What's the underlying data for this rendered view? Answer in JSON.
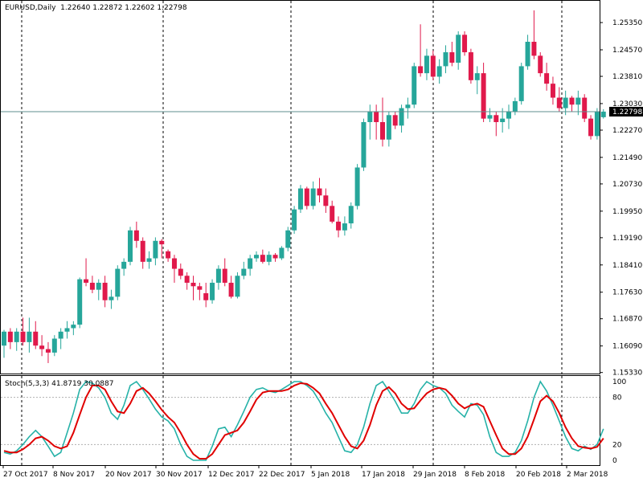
{
  "window": {
    "symbol": "EURUSD,Daily",
    "ohlc": "1.22640 1.22872 1.22602 1.22798"
  },
  "colors": {
    "bull": "#26a69a",
    "bear": "#e0194b",
    "stoch_main": "#26b2a8",
    "stoch_signal": "#e00000",
    "current_price_line": "#5f8f8f",
    "level_line": "#b0b0b0",
    "frame": "#000000",
    "price_label_bg": "#000000",
    "price_label_fg": "#ffffff"
  },
  "chart_data": [
    {
      "type": "candlestick",
      "title": "EURUSD,Daily",
      "ylim": [
        1.153,
        1.2595
      ],
      "y_ticks": [
        "1.25350",
        "1.24570",
        "1.23810",
        "1.23030",
        "1.22270",
        "1.21490",
        "1.20730",
        "1.19950",
        "1.19190",
        "1.18410",
        "1.17630",
        "1.16870",
        "1.16090",
        "1.15330"
      ],
      "current_price": "1.22798",
      "x_labels": [
        "27 Oct 2017",
        "8 Nov 2017",
        "20 Nov 2017",
        "30 Nov 2017",
        "12 Dec 2017",
        "22 Dec 2017",
        "5 Jan 2018",
        "17 Jan 2018",
        "29 Jan 2018",
        "8 Feb 2018",
        "20 Feb 2018",
        "2 Mar 2018"
      ],
      "period_separators": [
        "1 Nov 2017",
        "1 Dec 2017",
        "1 Jan 2018",
        "1 Feb 2018",
        "1 Mar 2018"
      ],
      "candles": [
        {
          "o": 1.161,
          "h": 1.1655,
          "l": 1.1575,
          "c": 1.165
        },
        {
          "o": 1.165,
          "h": 1.166,
          "l": 1.16,
          "c": 1.162
        },
        {
          "o": 1.162,
          "h": 1.166,
          "l": 1.1595,
          "c": 1.165
        },
        {
          "o": 1.165,
          "h": 1.169,
          "l": 1.161,
          "c": 1.162
        },
        {
          "o": 1.162,
          "h": 1.169,
          "l": 1.159,
          "c": 1.165
        },
        {
          "o": 1.165,
          "h": 1.168,
          "l": 1.16,
          "c": 1.161
        },
        {
          "o": 1.161,
          "h": 1.164,
          "l": 1.158,
          "c": 1.16
        },
        {
          "o": 1.16,
          "h": 1.162,
          "l": 1.156,
          "c": 1.159
        },
        {
          "o": 1.159,
          "h": 1.164,
          "l": 1.158,
          "c": 1.163
        },
        {
          "o": 1.163,
          "h": 1.166,
          "l": 1.16,
          "c": 1.165
        },
        {
          "o": 1.165,
          "h": 1.168,
          "l": 1.163,
          "c": 1.166
        },
        {
          "o": 1.166,
          "h": 1.168,
          "l": 1.164,
          "c": 1.167
        },
        {
          "o": 1.167,
          "h": 1.1805,
          "l": 1.166,
          "c": 1.18
        },
        {
          "o": 1.18,
          "h": 1.186,
          "l": 1.178,
          "c": 1.179
        },
        {
          "o": 1.179,
          "h": 1.181,
          "l": 1.176,
          "c": 1.177
        },
        {
          "o": 1.177,
          "h": 1.18,
          "l": 1.174,
          "c": 1.179
        },
        {
          "o": 1.179,
          "h": 1.181,
          "l": 1.172,
          "c": 1.174
        },
        {
          "o": 1.174,
          "h": 1.177,
          "l": 1.1715,
          "c": 1.175
        },
        {
          "o": 1.175,
          "h": 1.184,
          "l": 1.174,
          "c": 1.183
        },
        {
          "o": 1.183,
          "h": 1.186,
          "l": 1.181,
          "c": 1.185
        },
        {
          "o": 1.185,
          "h": 1.195,
          "l": 1.184,
          "c": 1.194
        },
        {
          "o": 1.194,
          "h": 1.1965,
          "l": 1.189,
          "c": 1.191
        },
        {
          "o": 1.191,
          "h": 1.192,
          "l": 1.183,
          "c": 1.185
        },
        {
          "o": 1.185,
          "h": 1.188,
          "l": 1.183,
          "c": 1.186
        },
        {
          "o": 1.186,
          "h": 1.192,
          "l": 1.184,
          "c": 1.191
        },
        {
          "o": 1.191,
          "h": 1.1915,
          "l": 1.186,
          "c": 1.19
        },
        {
          "o": 1.188,
          "h": 1.1885,
          "l": 1.185,
          "c": 1.186
        },
        {
          "o": 1.186,
          "h": 1.187,
          "l": 1.179,
          "c": 1.183
        },
        {
          "o": 1.183,
          "h": 1.1845,
          "l": 1.18,
          "c": 1.181
        },
        {
          "o": 1.181,
          "h": 1.182,
          "l": 1.177,
          "c": 1.179
        },
        {
          "o": 1.179,
          "h": 1.181,
          "l": 1.174,
          "c": 1.178
        },
        {
          "o": 1.178,
          "h": 1.179,
          "l": 1.174,
          "c": 1.177
        },
        {
          "o": 1.176,
          "h": 1.179,
          "l": 1.172,
          "c": 1.174
        },
        {
          "o": 1.174,
          "h": 1.18,
          "l": 1.173,
          "c": 1.179
        },
        {
          "o": 1.179,
          "h": 1.184,
          "l": 1.177,
          "c": 1.183
        },
        {
          "o": 1.183,
          "h": 1.186,
          "l": 1.178,
          "c": 1.179
        },
        {
          "o": 1.179,
          "h": 1.181,
          "l": 1.1745,
          "c": 1.175
        },
        {
          "o": 1.175,
          "h": 1.182,
          "l": 1.1745,
          "c": 1.181
        },
        {
          "o": 1.181,
          "h": 1.185,
          "l": 1.18,
          "c": 1.183
        },
        {
          "o": 1.183,
          "h": 1.187,
          "l": 1.181,
          "c": 1.186
        },
        {
          "o": 1.186,
          "h": 1.188,
          "l": 1.185,
          "c": 1.187
        },
        {
          "o": 1.187,
          "h": 1.1885,
          "l": 1.1845,
          "c": 1.185
        },
        {
          "o": 1.185,
          "h": 1.188,
          "l": 1.184,
          "c": 1.187
        },
        {
          "o": 1.187,
          "h": 1.1875,
          "l": 1.185,
          "c": 1.186
        },
        {
          "o": 1.186,
          "h": 1.1895,
          "l": 1.1855,
          "c": 1.189
        },
        {
          "o": 1.189,
          "h": 1.195,
          "l": 1.188,
          "c": 1.194
        },
        {
          "o": 1.194,
          "h": 1.201,
          "l": 1.193,
          "c": 1.2
        },
        {
          "o": 1.2,
          "h": 1.207,
          "l": 1.199,
          "c": 1.206
        },
        {
          "o": 1.206,
          "h": 1.2065,
          "l": 1.2,
          "c": 1.201
        },
        {
          "o": 1.201,
          "h": 1.208,
          "l": 1.2,
          "c": 1.206
        },
        {
          "o": 1.206,
          "h": 1.209,
          "l": 1.202,
          "c": 1.204
        },
        {
          "o": 1.204,
          "h": 1.206,
          "l": 1.199,
          "c": 1.201
        },
        {
          "o": 1.201,
          "h": 1.2025,
          "l": 1.196,
          "c": 1.1965
        },
        {
          "o": 1.1965,
          "h": 1.198,
          "l": 1.192,
          "c": 1.194
        },
        {
          "o": 1.194,
          "h": 1.198,
          "l": 1.1925,
          "c": 1.196
        },
        {
          "o": 1.196,
          "h": 1.202,
          "l": 1.1945,
          "c": 1.201
        },
        {
          "o": 1.201,
          "h": 1.213,
          "l": 1.2,
          "c": 1.212
        },
        {
          "o": 1.212,
          "h": 1.226,
          "l": 1.211,
          "c": 1.225
        },
        {
          "o": 1.225,
          "h": 1.23,
          "l": 1.22,
          "c": 1.228
        },
        {
          "o": 1.228,
          "h": 1.23,
          "l": 1.22,
          "c": 1.225
        },
        {
          "o": 1.225,
          "h": 1.232,
          "l": 1.218,
          "c": 1.22
        },
        {
          "o": 1.22,
          "h": 1.228,
          "l": 1.218,
          "c": 1.227
        },
        {
          "o": 1.227,
          "h": 1.228,
          "l": 1.223,
          "c": 1.224
        },
        {
          "o": 1.224,
          "h": 1.23,
          "l": 1.222,
          "c": 1.229
        },
        {
          "o": 1.229,
          "h": 1.232,
          "l": 1.226,
          "c": 1.23
        },
        {
          "o": 1.23,
          "h": 1.242,
          "l": 1.229,
          "c": 1.241
        },
        {
          "o": 1.241,
          "h": 1.253,
          "l": 1.238,
          "c": 1.239
        },
        {
          "o": 1.239,
          "h": 1.246,
          "l": 1.237,
          "c": 1.244
        },
        {
          "o": 1.244,
          "h": 1.2455,
          "l": 1.237,
          "c": 1.238
        },
        {
          "o": 1.238,
          "h": 1.243,
          "l": 1.236,
          "c": 1.241
        },
        {
          "o": 1.241,
          "h": 1.247,
          "l": 1.239,
          "c": 1.245
        },
        {
          "o": 1.245,
          "h": 1.248,
          "l": 1.241,
          "c": 1.242
        },
        {
          "o": 1.242,
          "h": 1.251,
          "l": 1.24,
          "c": 1.25
        },
        {
          "o": 1.25,
          "h": 1.251,
          "l": 1.244,
          "c": 1.245
        },
        {
          "o": 1.245,
          "h": 1.246,
          "l": 1.236,
          "c": 1.237
        },
        {
          "o": 1.237,
          "h": 1.241,
          "l": 1.233,
          "c": 1.239
        },
        {
          "o": 1.239,
          "h": 1.242,
          "l": 1.225,
          "c": 1.226
        },
        {
          "o": 1.226,
          "h": 1.229,
          "l": 1.225,
          "c": 1.227
        },
        {
          "o": 1.227,
          "h": 1.228,
          "l": 1.221,
          "c": 1.225
        },
        {
          "o": 1.225,
          "h": 1.229,
          "l": 1.222,
          "c": 1.226
        },
        {
          "o": 1.226,
          "h": 1.23,
          "l": 1.223,
          "c": 1.228
        },
        {
          "o": 1.228,
          "h": 1.232,
          "l": 1.227,
          "c": 1.231
        },
        {
          "o": 1.231,
          "h": 1.242,
          "l": 1.23,
          "c": 1.241
        },
        {
          "o": 1.241,
          "h": 1.25,
          "l": 1.24,
          "c": 1.248
        },
        {
          "o": 1.248,
          "h": 1.257,
          "l": 1.243,
          "c": 1.244
        },
        {
          "o": 1.244,
          "h": 1.245,
          "l": 1.238,
          "c": 1.239
        },
        {
          "o": 1.239,
          "h": 1.242,
          "l": 1.234,
          "c": 1.236
        },
        {
          "o": 1.236,
          "h": 1.238,
          "l": 1.23,
          "c": 1.232
        },
        {
          "o": 1.232,
          "h": 1.235,
          "l": 1.228,
          "c": 1.229
        },
        {
          "o": 1.229,
          "h": 1.234,
          "l": 1.227,
          "c": 1.232
        },
        {
          "o": 1.232,
          "h": 1.2325,
          "l": 1.228,
          "c": 1.23
        },
        {
          "o": 1.23,
          "h": 1.234,
          "l": 1.227,
          "c": 1.232
        },
        {
          "o": 1.232,
          "h": 1.233,
          "l": 1.225,
          "c": 1.226
        },
        {
          "o": 1.226,
          "h": 1.227,
          "l": 1.22,
          "c": 1.221
        },
        {
          "o": 1.221,
          "h": 1.229,
          "l": 1.22,
          "c": 1.228
        },
        {
          "o": 1.2264,
          "h": 1.2287,
          "l": 1.226,
          "c": 1.228
        }
      ]
    },
    {
      "type": "line",
      "title": "Stoch(5,3,3) 41.8719 30.0887",
      "ylim": [
        0,
        100
      ],
      "y_ticks": [
        "100",
        "80",
        "20",
        "0"
      ],
      "levels": [
        80,
        20
      ],
      "series": [
        {
          "values": [
            10,
            8,
            12,
            20,
            30,
            38,
            30,
            18,
            5,
            10,
            35,
            60,
            90,
            100,
            98,
            92,
            80,
            60,
            52,
            70,
            95,
            100,
            90,
            78,
            65,
            55,
            50,
            40,
            20,
            5,
            0,
            0,
            0,
            18,
            40,
            42,
            30,
            45,
            62,
            80,
            90,
            92,
            88,
            86,
            90,
            95,
            100,
            100,
            95,
            88,
            75,
            60,
            48,
            30,
            12,
            10,
            20,
            42,
            72,
            95,
            100,
            88,
            75,
            60,
            60,
            72,
            90,
            100,
            95,
            92,
            85,
            70,
            62,
            55,
            72,
            70,
            58,
            30,
            10,
            5,
            5,
            10,
            25,
            50,
            80,
            100,
            88,
            70,
            50,
            30,
            15,
            12,
            18,
            14,
            20,
            40
          ]
        },
        {
          "values": [
            12,
            10,
            10,
            14,
            20,
            28,
            30,
            25,
            18,
            15,
            18,
            35,
            58,
            80,
            95,
            95,
            90,
            75,
            62,
            60,
            72,
            88,
            92,
            85,
            75,
            64,
            55,
            48,
            35,
            20,
            8,
            2,
            2,
            8,
            20,
            32,
            35,
            38,
            48,
            62,
            77,
            86,
            88,
            88,
            88,
            90,
            95,
            98,
            97,
            92,
            85,
            72,
            60,
            45,
            30,
            18,
            15,
            25,
            45,
            70,
            88,
            93,
            85,
            72,
            65,
            66,
            76,
            85,
            90,
            92,
            90,
            82,
            72,
            66,
            70,
            72,
            68,
            50,
            32,
            15,
            8,
            8,
            15,
            30,
            52,
            75,
            82,
            75,
            60,
            42,
            28,
            18,
            16,
            15,
            17,
            28
          ]
        }
      ]
    }
  ]
}
